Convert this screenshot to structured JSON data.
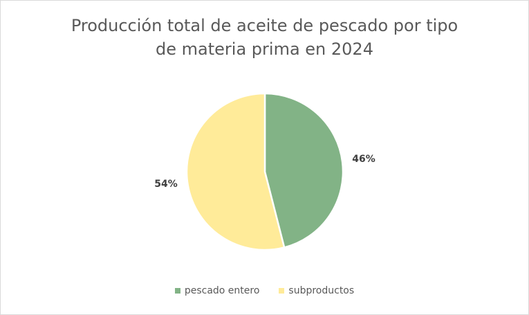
{
  "chart_data": {
    "type": "pie",
    "title_lines": [
      "Producción total de aceite de pescado por tipo",
      "de materia prima en 2024"
    ],
    "categories": [
      "pescado entero",
      "subproductos"
    ],
    "values": [
      46,
      54
    ],
    "labels": [
      "46%",
      "54%"
    ],
    "colors": [
      "#82b386",
      "#ffeb99"
    ],
    "legend_position": "bottom"
  }
}
